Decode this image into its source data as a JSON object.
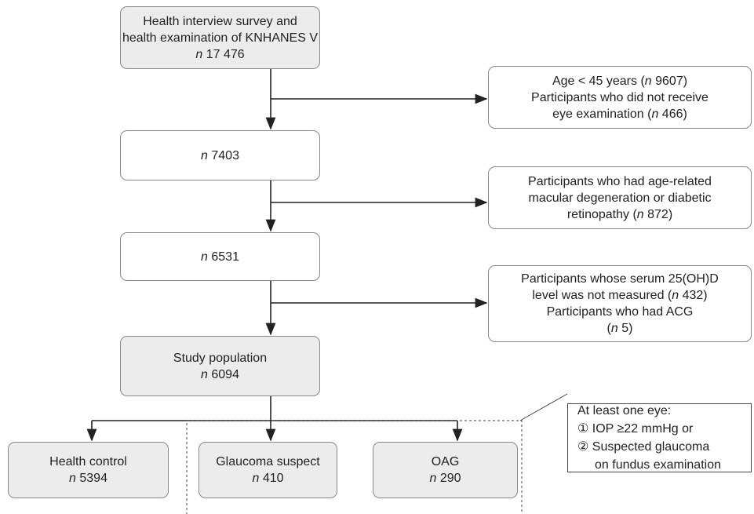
{
  "nodes": [
    {
      "lines": [
        [
          "Health interview survey and"
        ],
        [
          "health examination of KNHANES V"
        ],
        [
          "n",
          " 17 476"
        ]
      ]
    },
    {
      "lines": [
        [
          "Age < 45 years (",
          "n",
          " 9607)"
        ],
        [
          "Participants who did not receive"
        ],
        [
          "eye examination (",
          "n",
          " 466)"
        ]
      ]
    },
    {
      "lines": [
        [
          "n",
          " 7403"
        ]
      ]
    },
    {
      "lines": [
        [
          "Participants who had age-related"
        ],
        [
          "macular degeneration or diabetic"
        ],
        [
          "retinopathy (",
          "n",
          " 872)"
        ]
      ]
    },
    {
      "lines": [
        [
          "n",
          " 6531"
        ]
      ]
    },
    {
      "lines": [
        [
          "Participants whose serum 25(OH)D"
        ],
        [
          "level was not measured (",
          "n",
          " 432)"
        ],
        [
          "Participants who had ACG"
        ],
        [
          "(",
          "n",
          " 5)"
        ]
      ]
    },
    {
      "lines": [
        [
          "Study population"
        ],
        [
          "n",
          " 6094"
        ]
      ]
    },
    {
      "lines": [
        [
          "At least one eye:"
        ],
        [
          "① IOP ≥22 mmHg or"
        ],
        [
          "② Suspected glaucoma"
        ],
        [
          "on fundus examination"
        ]
      ]
    },
    {
      "lines": [
        [
          "Health control"
        ],
        [
          "n",
          " 5394"
        ]
      ]
    },
    {
      "lines": [
        [
          "Glaucoma suspect"
        ],
        [
          "n",
          " 410"
        ]
      ]
    },
    {
      "lines": [
        [
          "OAG"
        ],
        [
          "n",
          " 290"
        ]
      ]
    }
  ]
}
